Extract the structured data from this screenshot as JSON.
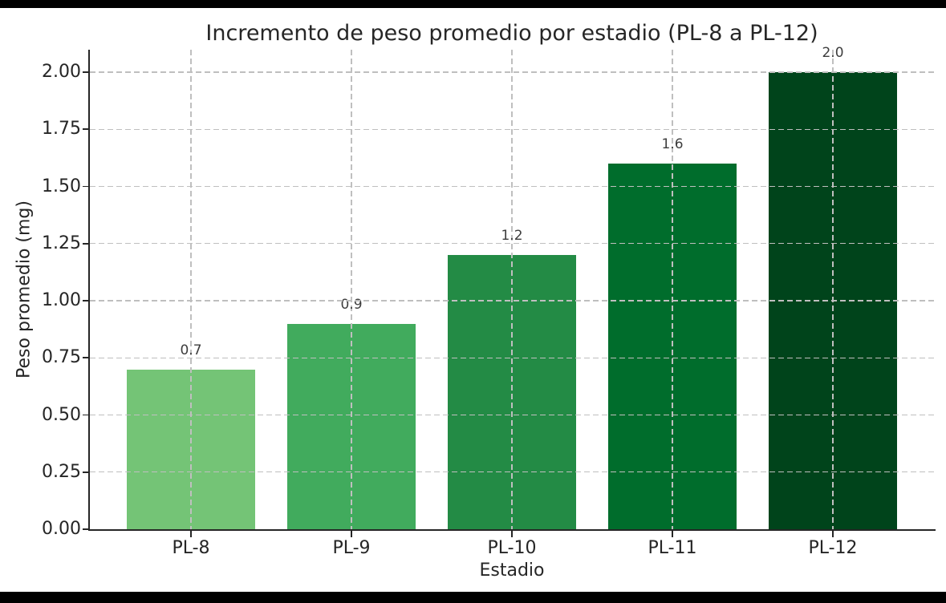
{
  "page": {
    "letterbox_color": "#000000"
  },
  "chart_data": {
    "type": "bar",
    "title": "Incremento de peso promedio por estadio (PL-8 a PL-12)",
    "xlabel": "Estadio",
    "ylabel": "Peso promedio (mg)",
    "categories": [
      "PL-8",
      "PL-9",
      "PL-10",
      "PL-11",
      "PL-12"
    ],
    "values": [
      0.7,
      0.9,
      1.2,
      1.6,
      2.0
    ],
    "value_labels": [
      "0.7",
      "0.9",
      "1.2",
      "1.6",
      "2.0"
    ],
    "bar_colors": [
      "#74c476",
      "#41ab5d",
      "#238b45",
      "#006d2c",
      "#00441b"
    ],
    "ytick_values": [
      0,
      0.25,
      0.5,
      0.75,
      1.0,
      1.25,
      1.5,
      1.75,
      2.0
    ],
    "ytick_labels": [
      "0.00",
      "0.25",
      "0.50",
      "0.75",
      "1.00",
      "1.25",
      "1.50",
      "1.75",
      "2.00"
    ],
    "ylim": [
      0,
      2.1
    ],
    "grid": "dashed, both axes, drawn over bars",
    "legend": "none",
    "figure_background": "#ffffff",
    "text_color": "#262626",
    "axis_color": "#262626",
    "grid_color": "#bfbfbf"
  }
}
